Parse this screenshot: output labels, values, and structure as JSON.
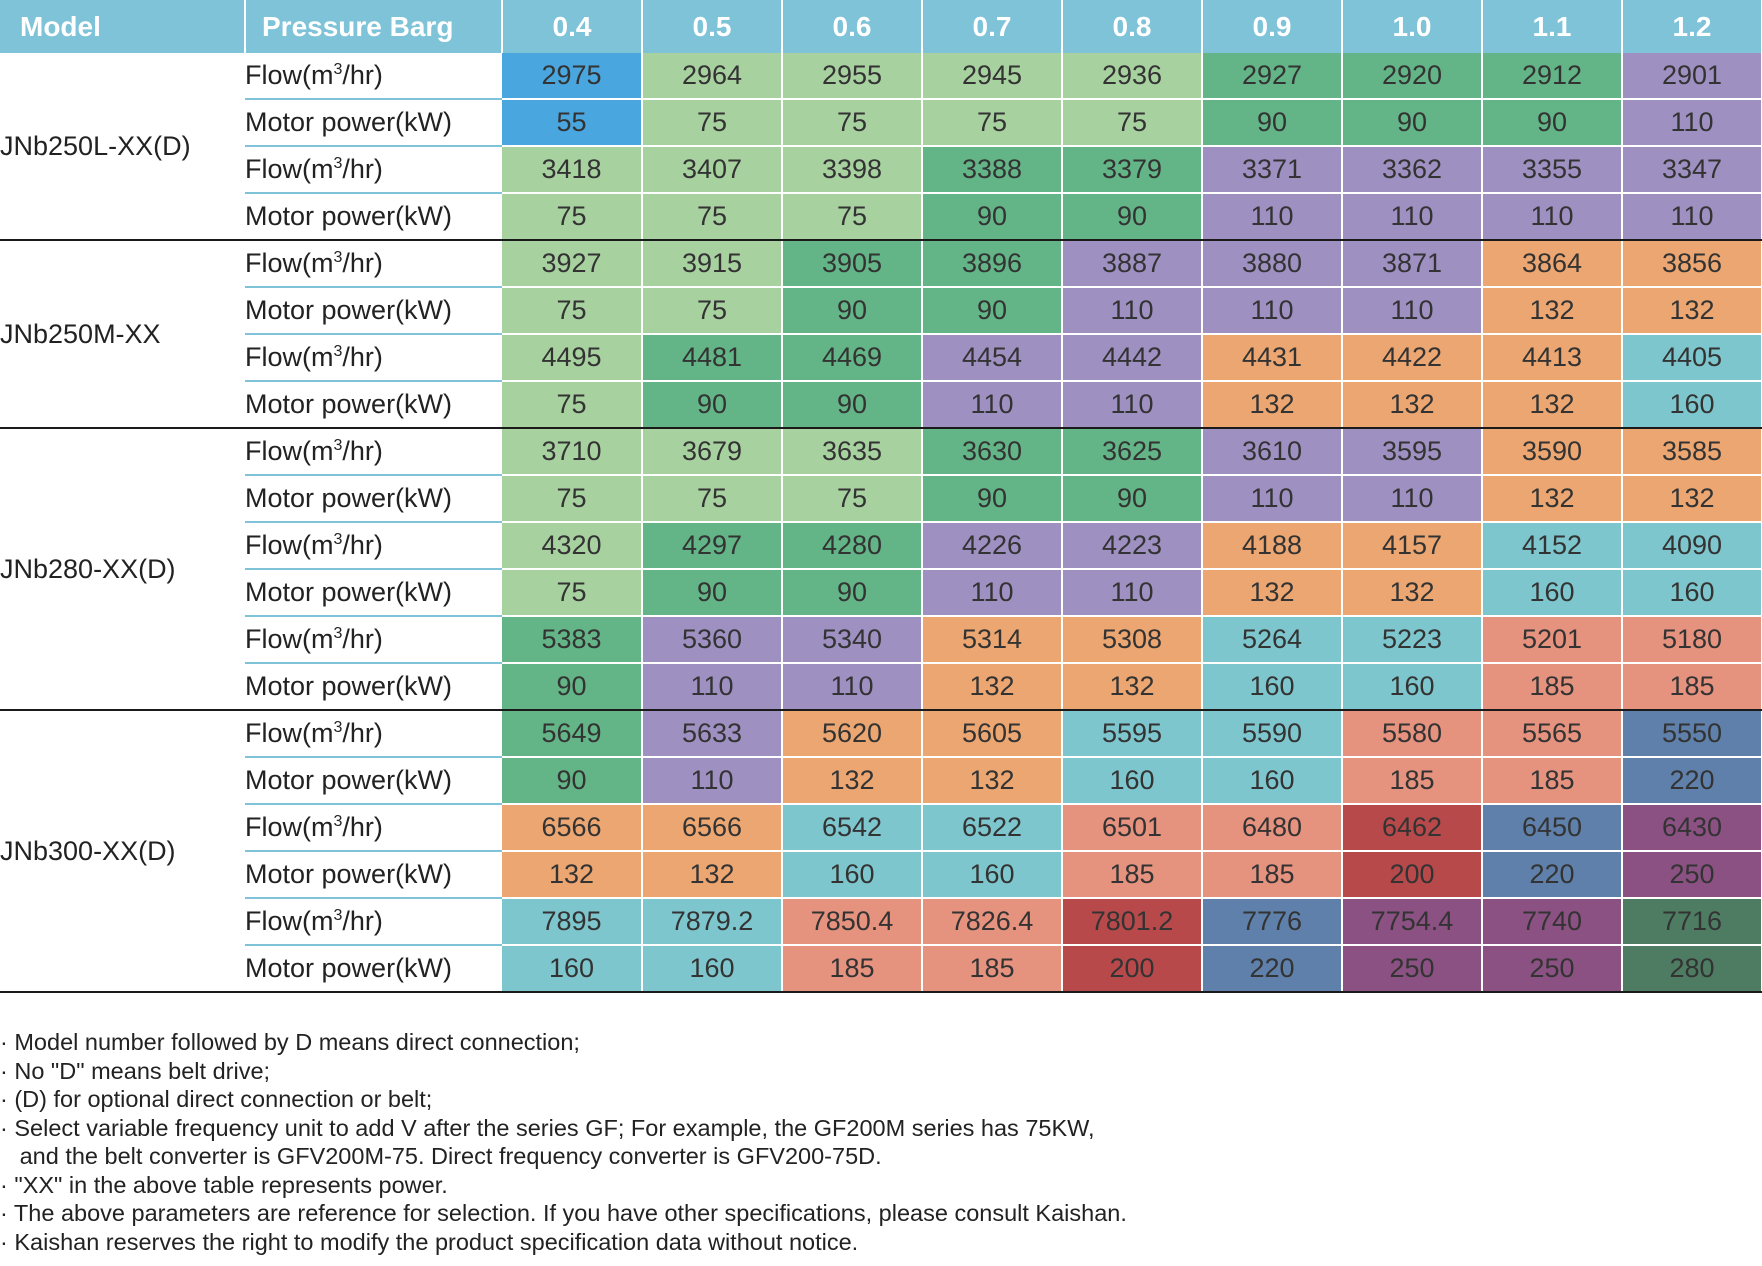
{
  "header": {
    "model_label": "Model",
    "pressure_label": "Pressure Barg",
    "pressures": [
      "0.4",
      "0.5",
      "0.6",
      "0.7",
      "0.8",
      "0.9",
      "1.0",
      "1.1",
      "1.2"
    ]
  },
  "labels": {
    "flow_prefix": "Flow(m",
    "flow_sup": "3",
    "flow_suffix": "/hr)",
    "motor": "Motor power(kW)"
  },
  "color_legend": {
    "blue": "#4aa6df",
    "light_green": "#a8d1a0",
    "mid_green": "#63b486",
    "purple": "#9f90c2",
    "orange": "#eba671",
    "teal": "#7ec6cd",
    "salmon": "#e5927f",
    "red": "#b8494a",
    "steel_blue": "#5e80aa",
    "plum": "#8b5183",
    "dark_green": "#4e7c62",
    "header_bg": "#7fc3d9"
  },
  "groups": [
    {
      "model": "JNb250L-XX(D)",
      "variants": [
        {
          "flow": [
            "2975",
            "2964",
            "2955",
            "2945",
            "2936",
            "2927",
            "2920",
            "2912",
            "2901"
          ],
          "power": [
            "55",
            "75",
            "75",
            "75",
            "75",
            "90",
            "90",
            "90",
            "110"
          ]
        },
        {
          "flow": [
            "3418",
            "3407",
            "3398",
            "3388",
            "3379",
            "3371",
            "3362",
            "3355",
            "3347"
          ],
          "power": [
            "75",
            "75",
            "75",
            "90",
            "90",
            "110",
            "110",
            "110",
            "110"
          ]
        }
      ]
    },
    {
      "model": "JNb250M-XX",
      "variants": [
        {
          "flow": [
            "3927",
            "3915",
            "3905",
            "3896",
            "3887",
            "3880",
            "3871",
            "3864",
            "3856"
          ],
          "power": [
            "75",
            "75",
            "90",
            "90",
            "110",
            "110",
            "110",
            "132",
            "132"
          ]
        },
        {
          "flow": [
            "4495",
            "4481",
            "4469",
            "4454",
            "4442",
            "4431",
            "4422",
            "4413",
            "4405"
          ],
          "power": [
            "75",
            "90",
            "90",
            "110",
            "110",
            "132",
            "132",
            "132",
            "160"
          ]
        }
      ]
    },
    {
      "model": "JNb280-XX(D)",
      "variants": [
        {
          "flow": [
            "3710",
            "3679",
            "3635",
            "3630",
            "3625",
            "3610",
            "3595",
            "3590",
            "3585"
          ],
          "power": [
            "75",
            "75",
            "75",
            "90",
            "90",
            "110",
            "110",
            "132",
            "132"
          ]
        },
        {
          "flow": [
            "4320",
            "4297",
            "4280",
            "4226",
            "4223",
            "4188",
            "4157",
            "4152",
            "4090"
          ],
          "power": [
            "75",
            "90",
            "90",
            "110",
            "110",
            "132",
            "132",
            "160",
            "160"
          ]
        },
        {
          "flow": [
            "5383",
            "5360",
            "5340",
            "5314",
            "5308",
            "5264",
            "5223",
            "5201",
            "5180"
          ],
          "power": [
            "90",
            "110",
            "110",
            "132",
            "132",
            "160",
            "160",
            "185",
            "185"
          ]
        }
      ]
    },
    {
      "model": "JNb300-XX(D)",
      "variants": [
        {
          "flow": [
            "5649",
            "5633",
            "5620",
            "5605",
            "5595",
            "5590",
            "5580",
            "5565",
            "5550"
          ],
          "power": [
            "90",
            "110",
            "132",
            "132",
            "160",
            "160",
            "185",
            "185",
            "220"
          ]
        },
        {
          "flow": [
            "6566",
            "6566",
            "6542",
            "6522",
            "6501",
            "6480",
            "6462",
            "6450",
            "6430"
          ],
          "power": [
            "132",
            "132",
            "160",
            "160",
            "185",
            "185",
            "200",
            "220",
            "250"
          ]
        },
        {
          "flow": [
            "7895",
            "7879.2",
            "7850.4",
            "7826.4",
            "7801.2",
            "7776",
            "7754.4",
            "7740",
            "7716"
          ],
          "power": [
            "160",
            "160",
            "185",
            "185",
            "200",
            "220",
            "250",
            "250",
            "280"
          ]
        }
      ]
    }
  ],
  "notes": [
    "· Model number followed by D means direct connection;",
    "· No \"D\" means belt drive;",
    "· (D) for optional direct connection or belt;",
    "· Select variable frequency unit to add V after the series GF; For example, the GF200M series has 75KW,",
    "   and the belt converter is GFV200M-75. Direct frequency converter is GFV200-75D.",
    "· \"XX\" in the above table represents power.",
    "· The above parameters are reference for selection. If you have other specifications, please consult Kaishan.",
    "· Kaishan reserves the right to modify the product specification data without notice."
  ]
}
